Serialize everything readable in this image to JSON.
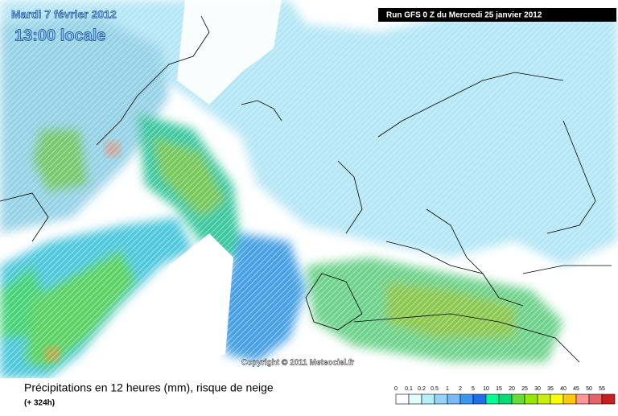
{
  "header": {
    "date": "Mardi 7 février 2012",
    "time": "13:00 locale",
    "run": "Run GFS 0 Z du Mercredi 25 janvier 2012"
  },
  "copyright": "Copyright © 2011 Meteociel.fr",
  "footer": {
    "title": "Précipitations en 12 heures (mm), risque de neige",
    "lead": "(+ 324h)"
  },
  "legend": {
    "labels": [
      0,
      0.1,
      0.2,
      0.5,
      1,
      2,
      5,
      10,
      15,
      20,
      25,
      30,
      35,
      40,
      45,
      50,
      55
    ],
    "colors": [
      "#ffffff",
      "#e1ffff",
      "#b4f0fa",
      "#96d2fa",
      "#78b9fa",
      "#3c96f5",
      "#1e6eeb",
      "#00ff96",
      "#00dc78",
      "#64dc32",
      "#96e600",
      "#c8f000",
      "#ffff00",
      "#ffc800",
      "#ff9696",
      "#e66464",
      "#c81e1e"
    ]
  }
}
